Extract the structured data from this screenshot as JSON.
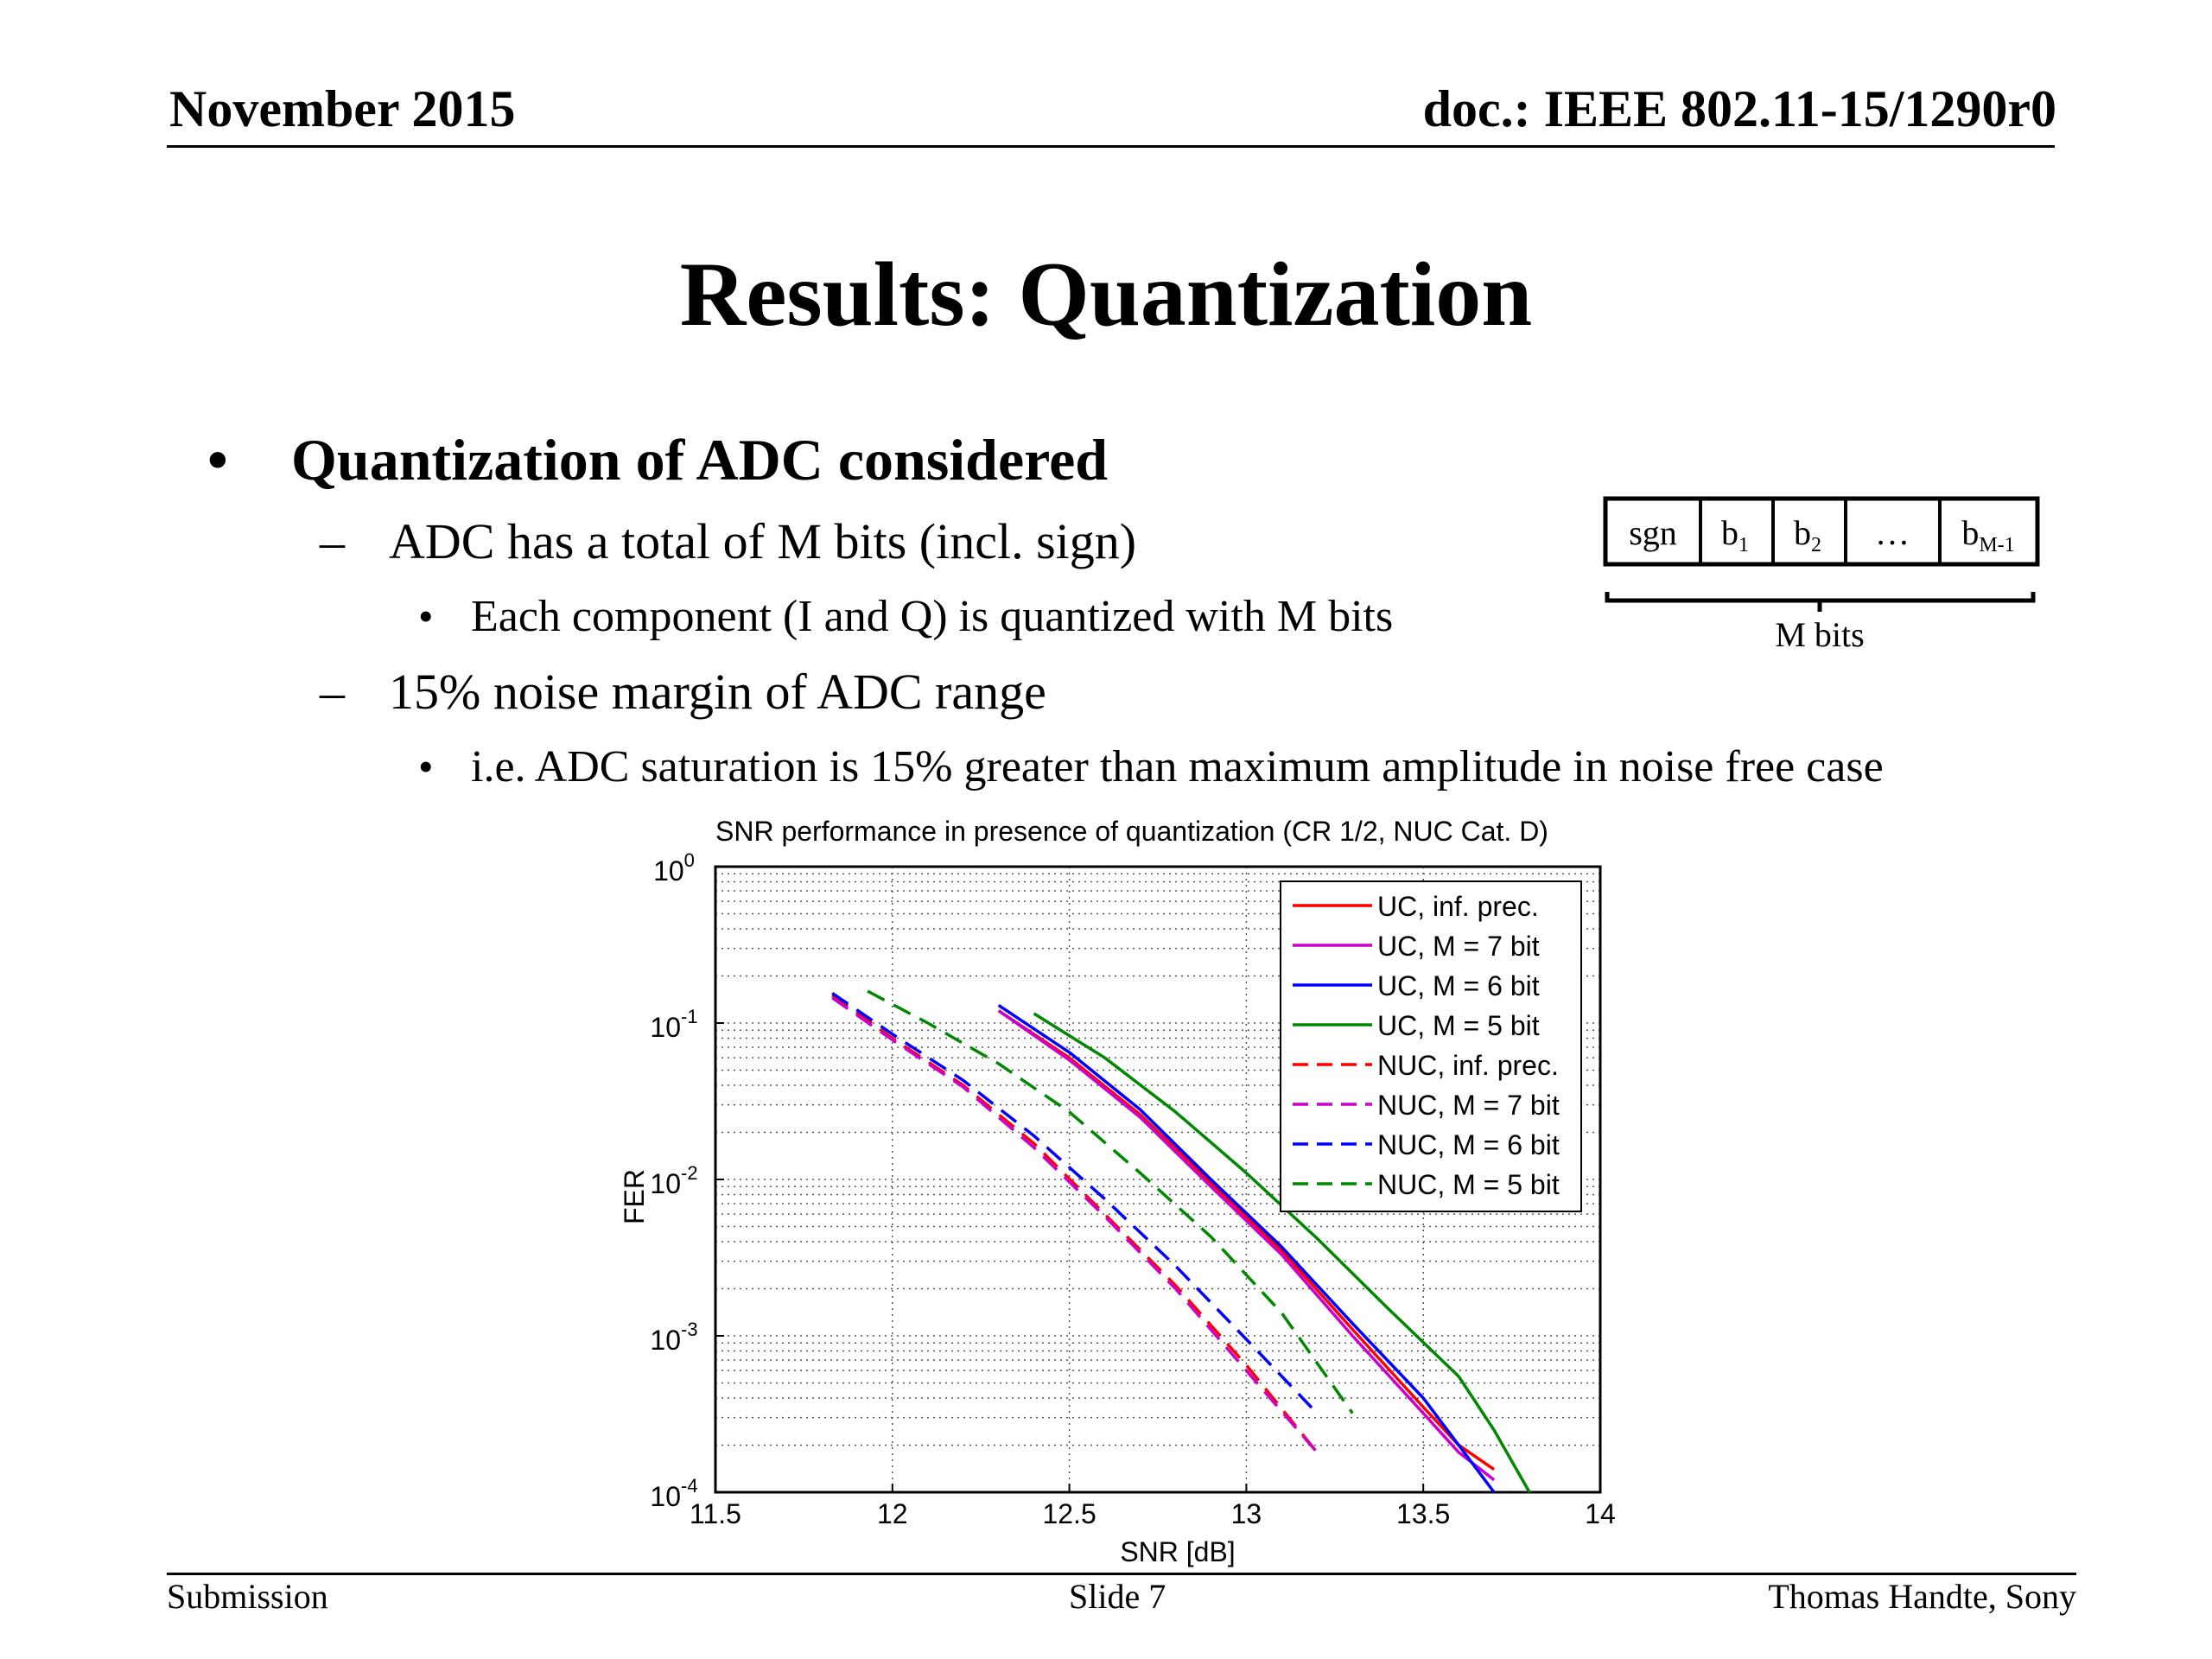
{
  "header": {
    "date": "November 2015",
    "doc": "doc.: IEEE 802.11-15/1290r0"
  },
  "title": "Results: Quantization",
  "bullets": {
    "b1": "Quantization of ADC considered",
    "d1": "ADC has a total of M bits (incl. sign)",
    "s1": "Each component (I and Q) is quantized with M bits",
    "d2": "15% noise margin of ADC range",
    "s2": "i.e. ADC saturation is 15% greater than maximum amplitude in noise free case",
    "bullet_glyph": "•",
    "dash_glyph": "–"
  },
  "bits_diagram": {
    "cells": [
      "sgn",
      "b",
      "b",
      "…",
      "b"
    ],
    "subscripts": [
      "",
      "1",
      "2",
      "",
      "M-1"
    ],
    "caption": "M bits"
  },
  "footer": {
    "left": "Submission",
    "center": "Slide 7",
    "right": "Thomas Handte, Sony"
  },
  "chart_data": {
    "type": "line",
    "title": "SNR performance in presence of quantization (CR 1/2, NUC Cat. D)",
    "xlabel": "SNR [dB]",
    "ylabel": "FER",
    "xlim": [
      11.5,
      14
    ],
    "ylim": [
      0.0001,
      1
    ],
    "yscale": "log",
    "xticks": [
      "11.5",
      "12",
      "12.5",
      "13",
      "13.5",
      "14"
    ],
    "yticks": [
      {
        "base": "10",
        "exp": "0"
      },
      {
        "base": "10",
        "exp": "-1"
      },
      {
        "base": "10",
        "exp": "-2"
      },
      {
        "base": "10",
        "exp": "-3"
      },
      {
        "base": "10",
        "exp": "-4"
      }
    ],
    "grid": true,
    "legend_position": "top-right",
    "series": [
      {
        "name": "UC, inf. prec.",
        "color": "#ff0000",
        "dash": false,
        "x": [
          12.3,
          12.5,
          12.7,
          12.9,
          13.1,
          13.3,
          13.5,
          13.6,
          13.7
        ],
        "y": [
          0.12,
          0.06,
          0.026,
          0.0095,
          0.0035,
          0.0011,
          0.00035,
          0.0002,
          0.00014
        ]
      },
      {
        "name": "UC, M = 7 bit",
        "color": "#cc00cc",
        "dash": false,
        "x": [
          12.3,
          12.5,
          12.7,
          12.9,
          13.1,
          13.3,
          13.5,
          13.6,
          13.7
        ],
        "y": [
          0.12,
          0.058,
          0.025,
          0.009,
          0.0033,
          0.001,
          0.00032,
          0.00018,
          0.00012
        ]
      },
      {
        "name": "UC, M = 6 bit",
        "color": "#0000ff",
        "dash": false,
        "x": [
          12.3,
          12.5,
          12.7,
          12.9,
          13.1,
          13.3,
          13.5,
          13.6,
          13.7
        ],
        "y": [
          0.13,
          0.065,
          0.028,
          0.01,
          0.0037,
          0.0012,
          0.0004,
          0.0002,
          0.0001
        ]
      },
      {
        "name": "UC, M = 5 bit",
        "color": "#008800",
        "dash": false,
        "x": [
          12.4,
          12.6,
          12.8,
          13.0,
          13.2,
          13.4,
          13.6,
          13.7,
          13.8
        ],
        "y": [
          0.115,
          0.06,
          0.027,
          0.011,
          0.0042,
          0.0015,
          0.00055,
          0.00025,
          0.0001
        ]
      },
      {
        "name": "NUC, inf. prec.",
        "color": "#ff0000",
        "dash": true,
        "x": [
          11.83,
          12.0,
          12.2,
          12.4,
          12.6,
          12.8,
          13.0,
          13.2
        ],
        "y": [
          0.15,
          0.08,
          0.04,
          0.017,
          0.006,
          0.0021,
          0.00065,
          0.00018
        ]
      },
      {
        "name": "NUC, M = 7 bit",
        "color": "#cc00cc",
        "dash": true,
        "x": [
          11.83,
          12.0,
          12.2,
          12.4,
          12.6,
          12.8,
          13.0,
          13.2
        ],
        "y": [
          0.145,
          0.078,
          0.039,
          0.016,
          0.0058,
          0.002,
          0.0006,
          0.00018
        ]
      },
      {
        "name": "NUC, M = 6 bit",
        "color": "#0000ff",
        "dash": true,
        "x": [
          11.83,
          12.0,
          12.2,
          12.4,
          12.6,
          12.8,
          13.0,
          13.2
        ],
        "y": [
          0.155,
          0.085,
          0.043,
          0.019,
          0.0075,
          0.0028,
          0.00095,
          0.00032
        ]
      },
      {
        "name": "NUC, M = 5 bit",
        "color": "#008800",
        "dash": true,
        "x": [
          11.93,
          12.1,
          12.3,
          12.5,
          12.7,
          12.9,
          13.1,
          13.3
        ],
        "y": [
          0.16,
          0.1,
          0.055,
          0.027,
          0.011,
          0.0043,
          0.0014,
          0.00032
        ]
      }
    ]
  }
}
